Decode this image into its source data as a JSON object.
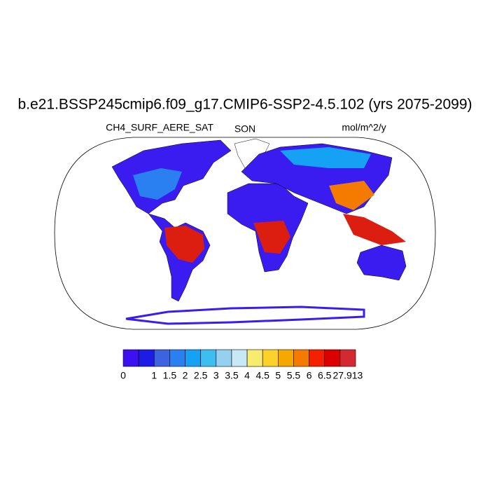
{
  "title": "b.e21.BSSP245cmip6.f09_g17.CMIP6-SSP2-4.5.102 (yrs 2075-2099)",
  "left_label": "CH4_SURF_AERE_SAT",
  "center_label": "SON",
  "right_label": "mol/m^2/y",
  "colorbar": {
    "colors": [
      "#3d10f2",
      "#1c1ce6",
      "#3c64e0",
      "#2a80f0",
      "#15a2f5",
      "#3cbef0",
      "#96d0f0",
      "#c8e8f5",
      "#f5ec70",
      "#fcd22a",
      "#f5a800",
      "#f57a00",
      "#f52000",
      "#dc0000",
      "#d22a30"
    ],
    "labels": [
      "0",
      "1",
      "1.5",
      "2",
      "2.5",
      "3",
      "3.5",
      "4",
      "4.5",
      "5",
      "5.5",
      "6",
      "6.5",
      "27.913"
    ]
  }
}
